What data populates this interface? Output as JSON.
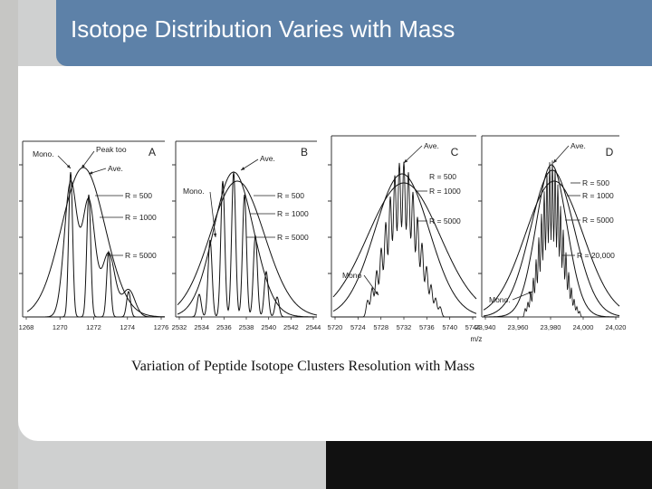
{
  "slide": {
    "title": "Isotope Distribution Varies with Mass",
    "caption": "Variation of Peptide Isotope Clusters Resolution with Mass"
  },
  "colors": {
    "title_bar": "#5d81a8",
    "panel": "#ffffff",
    "background": "#cfd0d0",
    "dark_corner": "#111111"
  },
  "figure": {
    "axis_unit": "m/z",
    "panels": [
      {
        "id": "A",
        "peak_labels": [
          "Mono.",
          "Peak too",
          "Ave."
        ],
        "resolution_labels": [
          "R = 500",
          "R = 1000",
          "R = 5000"
        ],
        "ticks": [
          "1268",
          "1270",
          "1272",
          "1274",
          "1276"
        ]
      },
      {
        "id": "B",
        "peak_labels": [
          "Ave.",
          "Mono."
        ],
        "resolution_labels": [
          "R = 500",
          "R = 1000",
          "R = 5000"
        ],
        "ticks": [
          "2532",
          "2534",
          "2536",
          "2538",
          "2540",
          "2542",
          "2544"
        ]
      },
      {
        "id": "C",
        "peak_labels": [
          "Ave.",
          "Mono"
        ],
        "resolution_labels": [
          "R = 500",
          "R = 1000",
          "R = 5000"
        ],
        "ticks": [
          "5720",
          "5724",
          "5728",
          "5732",
          "5736",
          "5740",
          "5744"
        ]
      },
      {
        "id": "D",
        "peak_labels": [
          "Ave.",
          "Mono."
        ],
        "resolution_labels": [
          "R = 500",
          "R = 1000",
          "R = 5000",
          "R = 20,000"
        ],
        "ticks": [
          "23,940",
          "23,960",
          "23,980",
          "24,000",
          "24,020"
        ]
      }
    ]
  }
}
